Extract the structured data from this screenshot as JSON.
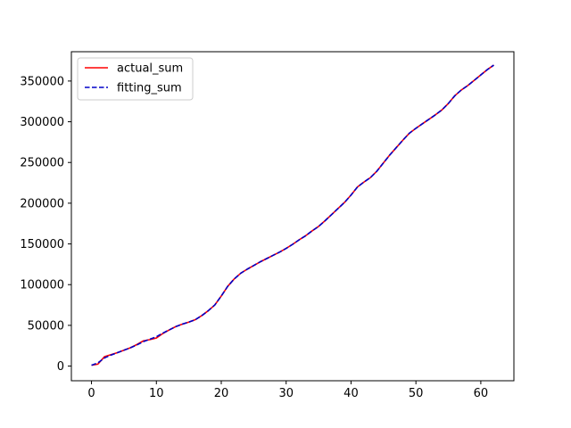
{
  "chart_data": {
    "type": "line",
    "title": "",
    "xlabel": "",
    "ylabel": "",
    "xlim": [
      -3.1,
      65.1
    ],
    "ylim": [
      -18000,
      386000
    ],
    "xticks": [
      0,
      10,
      20,
      30,
      40,
      50,
      60
    ],
    "yticks": [
      0,
      50000,
      100000,
      150000,
      200000,
      250000,
      300000,
      350000
    ],
    "grid": false,
    "legend_position": "top-left",
    "x": [
      0,
      1,
      2,
      3,
      4,
      5,
      6,
      7,
      8,
      9,
      10,
      11,
      12,
      13,
      14,
      15,
      16,
      17,
      18,
      19,
      20,
      21,
      22,
      23,
      24,
      25,
      26,
      27,
      28,
      29,
      30,
      31,
      32,
      33,
      34,
      35,
      36,
      37,
      38,
      39,
      40,
      41,
      42,
      43,
      44,
      45,
      46,
      47,
      48,
      49,
      50,
      51,
      52,
      53,
      54,
      55,
      56,
      57,
      58,
      59,
      60,
      61,
      62
    ],
    "series": [
      {
        "name": "actual_sum",
        "color": "#ff0000",
        "style": "solid",
        "values": [
          1000,
          2500,
          11500,
          14000,
          16500,
          19500,
          22500,
          26500,
          31000,
          32500,
          34500,
          40000,
          44500,
          48500,
          51500,
          54000,
          57000,
          62000,
          68000,
          75000,
          86000,
          98000,
          107000,
          114000,
          119000,
          123500,
          128000,
          132000,
          136000,
          140000,
          144500,
          149500,
          155000,
          160000,
          166000,
          171500,
          178500,
          186000,
          193500,
          201000,
          210000,
          220000,
          226000,
          231500,
          239500,
          249500,
          259500,
          268500,
          277500,
          286000,
          292000,
          297500,
          303000,
          308500,
          314500,
          322500,
          332000,
          339000,
          344500,
          351000,
          357500,
          364000,
          369500
        ]
      },
      {
        "name": "fitting_sum",
        "color": "#0000c8",
        "style": "dashed",
        "values": [
          1000,
          4000,
          10000,
          13500,
          16500,
          19500,
          22500,
          26000,
          30000,
          33000,
          36000,
          40500,
          44500,
          48500,
          51500,
          54000,
          57000,
          62000,
          68000,
          75000,
          86000,
          98000,
          107000,
          114000,
          119000,
          123500,
          128000,
          132000,
          136000,
          140000,
          144500,
          149500,
          155000,
          160000,
          166000,
          171500,
          178500,
          186000,
          193500,
          201000,
          210000,
          220000,
          226000,
          231500,
          239500,
          249500,
          259500,
          268500,
          277500,
          286000,
          292000,
          297500,
          303000,
          308500,
          314500,
          322500,
          332000,
          339000,
          344500,
          351000,
          357500,
          364000,
          369500
        ]
      }
    ]
  }
}
